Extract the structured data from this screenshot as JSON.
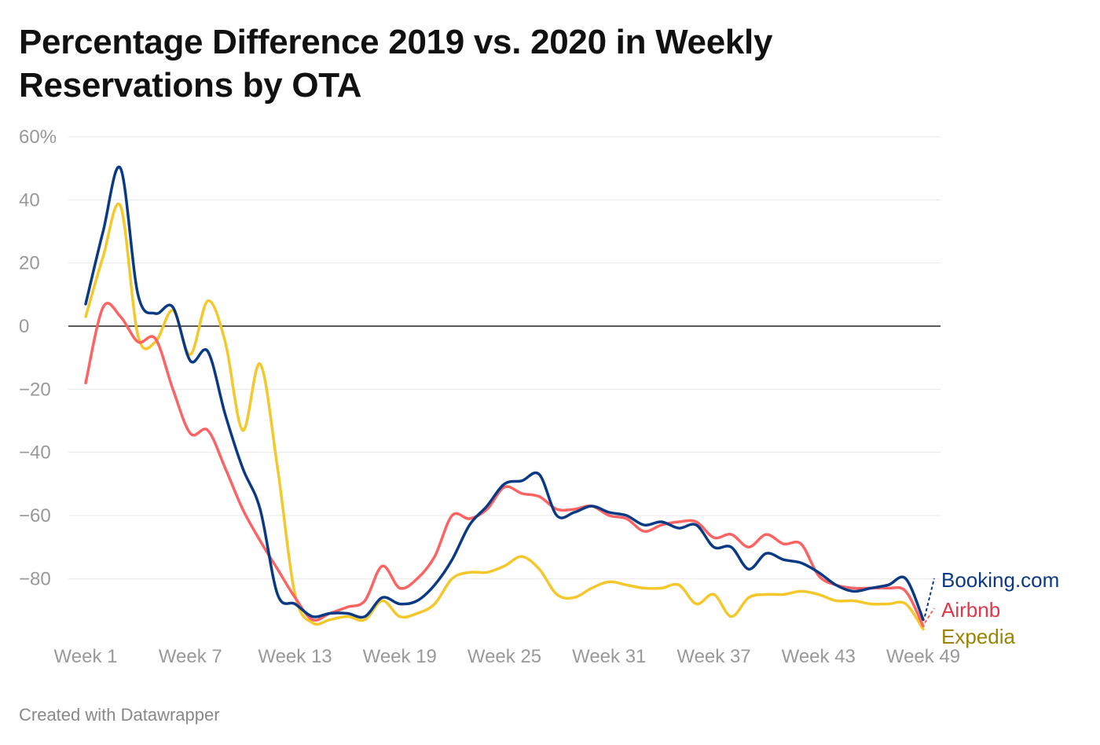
{
  "chart_data": {
    "type": "line",
    "title": "Percentage Difference 2019 vs. 2020 in Weekly Reservations by OTA",
    "xlabel": "",
    "ylabel": "",
    "ylim": [
      -97,
      60
    ],
    "yticks": [
      60,
      40,
      20,
      0,
      -20,
      -40,
      -60,
      -80
    ],
    "ytick_labels": [
      "60%",
      "40",
      "20",
      "0",
      "−20",
      "−40",
      "−60",
      "−80"
    ],
    "xticks": [
      1,
      7,
      13,
      19,
      25,
      31,
      37,
      43,
      49
    ],
    "xtick_labels": [
      "Week 1",
      "Week 7",
      "Week 13",
      "Week 19",
      "Week 25",
      "Week 31",
      "Week 37",
      "Week 43",
      "Week 49"
    ],
    "grid": true,
    "legend": "right-end labels",
    "x": [
      1,
      2,
      3,
      4,
      5,
      6,
      7,
      8,
      9,
      10,
      11,
      12,
      13,
      14,
      15,
      16,
      17,
      18,
      19,
      20,
      21,
      22,
      23,
      24,
      25,
      26,
      27,
      28,
      29,
      30,
      31,
      32,
      33,
      34,
      35,
      36,
      37,
      38,
      39,
      40,
      41,
      42,
      43,
      44,
      45,
      46,
      47,
      48,
      49
    ],
    "series": [
      {
        "name": "Booking.com",
        "color": "#0b3a84",
        "label_color": "#0b3a84",
        "values": [
          7,
          30,
          50,
          10,
          4,
          6,
          -11,
          -8,
          -28,
          -45,
          -58,
          -85,
          -88,
          -92,
          -91,
          -91,
          -92,
          -86,
          -88,
          -87,
          -82,
          -74,
          -63,
          -57,
          -50,
          -49,
          -47,
          -60,
          -59,
          -57,
          -59,
          -60,
          -63,
          -62,
          -64,
          -63,
          -70,
          -70,
          -77,
          -72,
          -74,
          -75,
          -78,
          -82,
          -84,
          -83,
          -82,
          -80,
          -93
        ]
      },
      {
        "name": "Airbnb",
        "color": "#fd6363",
        "label_color": "#e0384a",
        "values": [
          -18,
          6,
          3,
          -5,
          -4,
          -20,
          -34,
          -33,
          -45,
          -58,
          -68,
          -77,
          -86,
          -93,
          -91,
          -89,
          -87,
          -76,
          -83,
          -80,
          -73,
          -60,
          -61,
          -58,
          -51,
          -53,
          -54,
          -58,
          -58,
          -57,
          -60,
          -61,
          -65,
          -63,
          -62,
          -62,
          -67,
          -66,
          -70,
          -66,
          -69,
          -69,
          -79,
          -82,
          -83,
          -83,
          -83,
          -84,
          -95
        ]
      },
      {
        "name": "Expedia",
        "color": "#f4c82a",
        "label_color": "#9c8300",
        "values": [
          3,
          22,
          38,
          -3,
          -5,
          5,
          -9,
          8,
          -5,
          -33,
          -12,
          -45,
          -85,
          -94,
          -93,
          -92,
          -93,
          -87,
          -92,
          -91,
          -88,
          -80,
          -78,
          -78,
          -76,
          -73,
          -77,
          -85,
          -86,
          -83,
          -81,
          -82,
          -83,
          -83,
          -82,
          -88,
          -85,
          -92,
          -86,
          -85,
          -85,
          -84,
          -85,
          -87,
          -87,
          -88,
          -88,
          -88,
          -96
        ]
      }
    ]
  },
  "footer": "Created with Datawrapper"
}
